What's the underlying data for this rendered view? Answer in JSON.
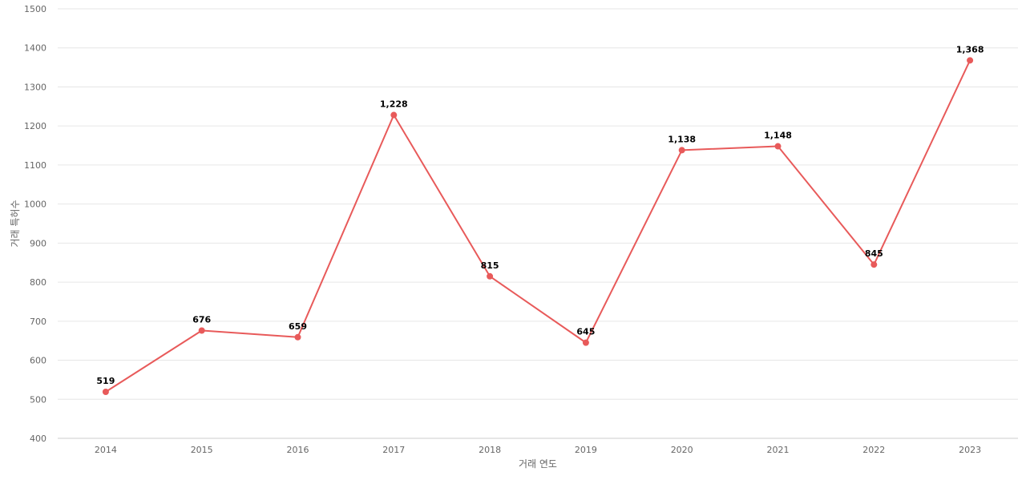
{
  "chart_data": {
    "type": "line",
    "title": "",
    "xlabel": "거래 연도",
    "ylabel": "거래 특허수",
    "ylim": [
      400,
      1500
    ],
    "yticks": [
      "400",
      "500",
      "600",
      "700",
      "800",
      "900",
      "1000",
      "1100",
      "1200",
      "1300",
      "1400",
      "1500"
    ],
    "categories": [
      "2014",
      "2015",
      "2016",
      "2017",
      "2018",
      "2019",
      "2020",
      "2021",
      "2022",
      "2023"
    ],
    "series": [
      {
        "values": [
          519,
          676,
          659,
          1228,
          815,
          645,
          1138,
          1148,
          845,
          1368
        ],
        "labels": [
          "519",
          "676",
          "659",
          "1,228",
          "815",
          "645",
          "1,138",
          "1,148",
          "845",
          "1,368"
        ],
        "color": "#e85a5a"
      }
    ],
    "grid": true,
    "legend": "none"
  }
}
